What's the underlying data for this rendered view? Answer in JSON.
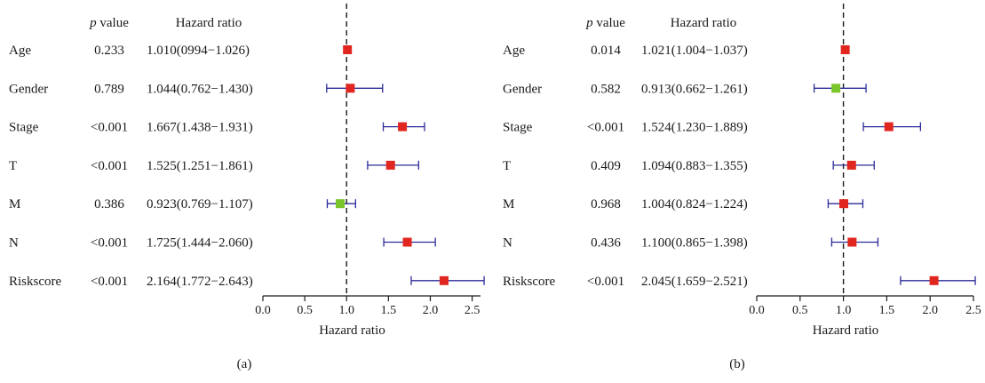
{
  "chart_data": [
    {
      "type": "forest",
      "panel_label": "(a)",
      "col_pvalue_italic": "p",
      "col_pvalue_rest": " value",
      "col_hr": "Hazard ratio",
      "xlabel": "Hazard ratio",
      "xlim": [
        0.0,
        2.6
      ],
      "xticks": [
        "0.0",
        "0.5",
        "1.0",
        "1.5",
        "2.0",
        "2.5"
      ],
      "reference_line": 1.0,
      "rows": [
        {
          "label": "Age",
          "p": "0.233",
          "hr_text": "1.010(0994−1.026)",
          "hr": 1.01,
          "lo": 0.994,
          "hi": 1.026,
          "color": "#e0261f"
        },
        {
          "label": "Gender",
          "p": "0.789",
          "hr_text": "1.044(0.762−1.430)",
          "hr": 1.044,
          "lo": 0.762,
          "hi": 1.43,
          "color": "#e0261f"
        },
        {
          "label": "Stage",
          "p": "<0.001",
          "hr_text": "1.667(1.438−1.931)",
          "hr": 1.667,
          "lo": 1.438,
          "hi": 1.931,
          "color": "#e0261f"
        },
        {
          "label": "T",
          "p": "<0.001",
          "hr_text": "1.525(1.251−1.861)",
          "hr": 1.525,
          "lo": 1.251,
          "hi": 1.861,
          "color": "#e0261f"
        },
        {
          "label": "M",
          "p": "0.386",
          "hr_text": "0.923(0.769−1.107)",
          "hr": 0.923,
          "lo": 0.769,
          "hi": 1.107,
          "color": "#7ac52a"
        },
        {
          "label": "N",
          "p": "<0.001",
          "hr_text": "1.725(1.444−2.060)",
          "hr": 1.725,
          "lo": 1.444,
          "hi": 2.06,
          "color": "#e0261f"
        },
        {
          "label": "Riskscore",
          "p": "<0.001",
          "hr_text": "2.164(1.772−2.643)",
          "hr": 2.164,
          "lo": 1.772,
          "hi": 2.643,
          "color": "#e0261f"
        }
      ]
    },
    {
      "type": "forest",
      "panel_label": "(b)",
      "col_pvalue_italic": "p",
      "col_pvalue_rest": " value",
      "col_hr": "Hazard ratio",
      "xlabel": "Hazard ratio",
      "xlim": [
        0.0,
        2.5
      ],
      "xticks": [
        "0.0",
        "0.5",
        "1.0",
        "1.5",
        "2.0",
        "2.5"
      ],
      "reference_line": 1.0,
      "rows": [
        {
          "label": "Age",
          "p": "0.014",
          "hr_text": "1.021(1.004−1.037)",
          "hr": 1.021,
          "lo": 1.004,
          "hi": 1.037,
          "color": "#e0261f"
        },
        {
          "label": "Gender",
          "p": "0.582",
          "hr_text": "0.913(0.662−1.261)",
          "hr": 0.913,
          "lo": 0.662,
          "hi": 1.261,
          "color": "#7ac52a"
        },
        {
          "label": "Stage",
          "p": "<0.001",
          "hr_text": "1.524(1.230−1.889)",
          "hr": 1.524,
          "lo": 1.23,
          "hi": 1.889,
          "color": "#e0261f"
        },
        {
          "label": "T",
          "p": "0.409",
          "hr_text": "1.094(0.883−1.355)",
          "hr": 1.094,
          "lo": 0.883,
          "hi": 1.355,
          "color": "#e0261f"
        },
        {
          "label": "M",
          "p": "0.968",
          "hr_text": "1.004(0.824−1.224)",
          "hr": 1.004,
          "lo": 0.824,
          "hi": 1.224,
          "color": "#e0261f"
        },
        {
          "label": "N",
          "p": "0.436",
          "hr_text": "1.100(0.865−1.398)",
          "hr": 1.1,
          "lo": 0.865,
          "hi": 1.398,
          "color": "#e0261f"
        },
        {
          "label": "Riskscore",
          "p": "<0.001",
          "hr_text": "2.045(1.659−2.521)",
          "hr": 2.045,
          "lo": 1.659,
          "hi": 2.521,
          "color": "#e0261f"
        }
      ]
    }
  ],
  "style": {
    "ci_color": "#2b2b9a",
    "axis_color": "#1a1a1a"
  }
}
